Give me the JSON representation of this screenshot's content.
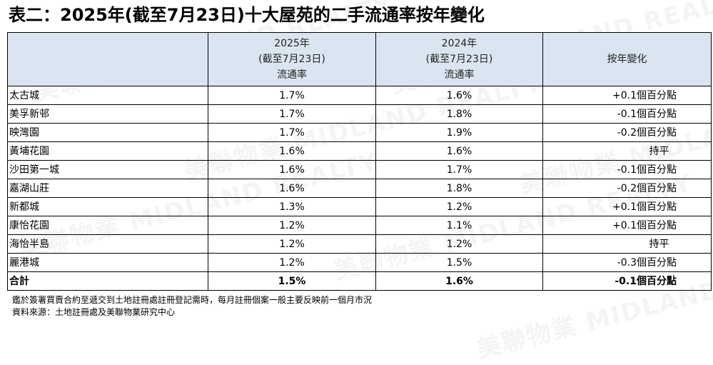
{
  "title": "表二：2025年(截至7月23日)十大屋苑的二手流通率按年變化",
  "header": {
    "col_2025": [
      "2025年",
      "(截至7月23日)",
      "流通率"
    ],
    "col_2024": [
      "2024年",
      "(截至7月23日)",
      "流通率"
    ],
    "col_change": "按年變化"
  },
  "rows": [
    {
      "name": "太古城",
      "r2025": "1.7%",
      "r2024": "1.6%",
      "change": "+0.1個百分點"
    },
    {
      "name": "美孚新邨",
      "r2025": "1.7%",
      "r2024": "1.8%",
      "change": "-0.1個百分點"
    },
    {
      "name": "映灣園",
      "r2025": "1.7%",
      "r2024": "1.9%",
      "change": "-0.2個百分點"
    },
    {
      "name": "黃埔花園",
      "r2025": "1.6%",
      "r2024": "1.6%",
      "change": "持平"
    },
    {
      "name": "沙田第一城",
      "r2025": "1.6%",
      "r2024": "1.7%",
      "change": "-0.1個百分點"
    },
    {
      "name": "嘉湖山莊",
      "r2025": "1.6%",
      "r2024": "1.8%",
      "change": "-0.2個百分點"
    },
    {
      "name": "新都城",
      "r2025": "1.3%",
      "r2024": "1.2%",
      "change": "+0.1個百分點"
    },
    {
      "name": "康怡花園",
      "r2025": "1.2%",
      "r2024": "1.1%",
      "change": "+0.1個百分點"
    },
    {
      "name": "海怡半島",
      "r2025": "1.2%",
      "r2024": "1.2%",
      "change": "持平"
    },
    {
      "name": "麗港城",
      "r2025": "1.2%",
      "r2024": "1.5%",
      "change": "-0.3個百分點"
    }
  ],
  "total": {
    "name": "合計",
    "r2025": "1.5%",
    "r2024": "1.6%",
    "change": "-0.1個百分點"
  },
  "notes": {
    "note1": "鑑於簽署買賣合約至遞交到土地註冊處註冊登記需時，每月註冊個案一般主要反映前一個月市況",
    "source": "資料來源：土地註冊處及美聯物業研究中心"
  },
  "watermark": "美聯物業 MIDLAND REALTY",
  "colors": {
    "header_bg": "#dbe5f1",
    "border": "#000000"
  }
}
